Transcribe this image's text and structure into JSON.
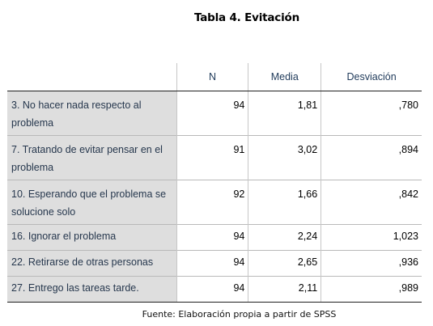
{
  "title": "Tabla 4. Evitación",
  "table": {
    "headers": [
      "",
      "N",
      "Media",
      "Desviación"
    ],
    "rows": [
      {
        "label": "3. No hacer nada respecto al problema",
        "n": "94",
        "media": "1,81",
        "desviacion": ",780"
      },
      {
        "label": "7. Tratando de evitar pensar en el problema",
        "n": "91",
        "media": "3,02",
        "desviacion": ",894"
      },
      {
        "label": "10. Esperando que el problema se solucione solo",
        "n": "92",
        "media": "1,66",
        "desviacion": ",842"
      },
      {
        "label": "16. Ignorar el problema",
        "n": "94",
        "media": "2,24",
        "desviacion": "1,023"
      },
      {
        "label": "22. Retirarse de otras personas",
        "n": "94",
        "media": "2,65",
        "desviacion": ",936"
      },
      {
        "label": "27. Entrego las tareas tarde.",
        "n": "94",
        "media": "2,11",
        "desviacion": ",989"
      }
    ]
  },
  "source": "Fuente: Elaboración propia a partir de SPSS",
  "colors": {
    "header_text": "#1f3a5a",
    "label_background": "#dedede",
    "label_text": "#26374d"
  }
}
